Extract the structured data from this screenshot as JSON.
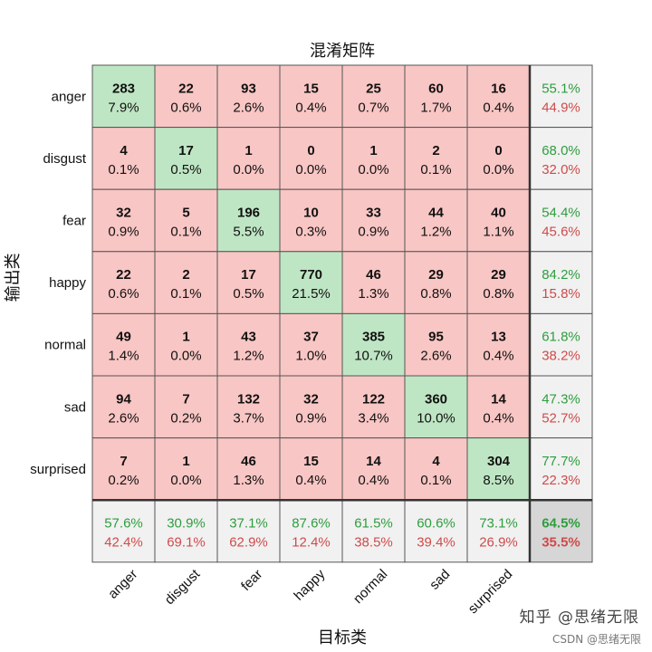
{
  "chart_data": {
    "type": "heatmap",
    "title": "混淆矩阵",
    "xlabel": "目标类",
    "ylabel": "输出类",
    "categories": [
      "anger",
      "disgust",
      "fear",
      "happy",
      "normal",
      "sad",
      "surprised"
    ],
    "counts": [
      [
        283,
        22,
        93,
        15,
        25,
        60,
        16
      ],
      [
        4,
        17,
        1,
        0,
        1,
        2,
        0
      ],
      [
        32,
        5,
        196,
        10,
        33,
        44,
        40
      ],
      [
        22,
        2,
        17,
        770,
        46,
        29,
        29
      ],
      [
        49,
        1,
        43,
        37,
        385,
        95,
        13
      ],
      [
        94,
        7,
        132,
        32,
        122,
        360,
        14
      ],
      [
        7,
        1,
        46,
        15,
        14,
        4,
        304
      ]
    ],
    "percents": [
      [
        "7.9%",
        "0.6%",
        "2.6%",
        "0.4%",
        "0.7%",
        "1.7%",
        "0.4%"
      ],
      [
        "0.1%",
        "0.5%",
        "0.0%",
        "0.0%",
        "0.0%",
        "0.1%",
        "0.0%"
      ],
      [
        "0.9%",
        "0.1%",
        "5.5%",
        "0.3%",
        "0.9%",
        "1.2%",
        "1.1%"
      ],
      [
        "0.6%",
        "0.1%",
        "0.5%",
        "21.5%",
        "1.3%",
        "0.8%",
        "0.8%"
      ],
      [
        "1.4%",
        "0.0%",
        "1.2%",
        "1.0%",
        "10.7%",
        "2.6%",
        "0.4%"
      ],
      [
        "2.6%",
        "0.2%",
        "3.7%",
        "0.9%",
        "3.4%",
        "10.0%",
        "0.4%"
      ],
      [
        "0.2%",
        "0.0%",
        "1.3%",
        "0.4%",
        "0.4%",
        "0.1%",
        "8.5%"
      ]
    ],
    "row_summary": [
      [
        "55.1%",
        "44.9%"
      ],
      [
        "68.0%",
        "32.0%"
      ],
      [
        "54.4%",
        "45.6%"
      ],
      [
        "84.2%",
        "15.8%"
      ],
      [
        "61.8%",
        "38.2%"
      ],
      [
        "47.3%",
        "52.7%"
      ],
      [
        "77.7%",
        "22.3%"
      ]
    ],
    "col_summary": [
      [
        "57.6%",
        "42.4%"
      ],
      [
        "30.9%",
        "69.1%"
      ],
      [
        "37.1%",
        "62.9%"
      ],
      [
        "87.6%",
        "12.4%"
      ],
      [
        "61.5%",
        "38.5%"
      ],
      [
        "60.6%",
        "39.4%"
      ],
      [
        "73.1%",
        "26.9%"
      ]
    ],
    "overall": [
      "64.5%",
      "35.5%"
    ],
    "colors": {
      "diagonal": "#bfe6c4",
      "off_diagonal": "#f8c6c4",
      "summary_bg": "#f1f1f1",
      "overall_bg": "#d6d6d6",
      "good_text": "#2e9e3e",
      "bad_text": "#cf4b4b"
    }
  },
  "watermark": {
    "line1": "知乎 @思绪无限",
    "line2": "CSDN @思绪无限"
  }
}
